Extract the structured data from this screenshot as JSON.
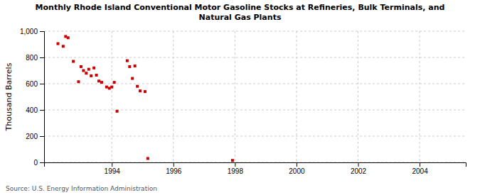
{
  "chart_data": {
    "type": "scatter",
    "title": "Monthly Rhode Island Conventional Motor Gasoline Stocks at Refineries, Bulk Terminals, and\nNatural Gas Plants",
    "y_label": "Thousand Barrels",
    "annotations": [
      "Source: U.S. Energy Information Administration"
    ],
    "xlim": [
      1991.8,
      2005.5
    ],
    "ylim": [
      0,
      1000
    ],
    "xticks": [
      1994,
      1996,
      1998,
      2000,
      2002,
      2004
    ],
    "yticks": [
      0,
      200,
      400,
      600,
      800,
      {
        "value": 1000,
        "label": "1,000"
      }
    ],
    "grid": true,
    "series": [
      {
        "color": "#cc0000",
        "marker": "square",
        "x": [
          1992.25,
          1992.42,
          1992.5,
          1992.58,
          1992.75,
          1992.92,
          1993.0,
          1993.08,
          1993.17,
          1993.25,
          1993.33,
          1993.42,
          1993.5,
          1993.58,
          1993.67,
          1993.83,
          1993.92,
          1994.0,
          1994.08,
          1994.17,
          1994.5,
          1994.58,
          1994.67,
          1994.75,
          1994.83,
          1994.92,
          1995.08
        ],
        "values": [
          905,
          885,
          960,
          950,
          770,
          615,
          730,
          700,
          680,
          710,
          660,
          720,
          665,
          620,
          610,
          575,
          565,
          575,
          610,
          390,
          775,
          730,
          640,
          735,
          580,
          545,
          540
        ]
      },
      {
        "color": "#cc0000",
        "marker": "square",
        "x": [
          1995.17,
          1997.92
        ],
        "values": [
          30,
          15
        ]
      }
    ]
  }
}
